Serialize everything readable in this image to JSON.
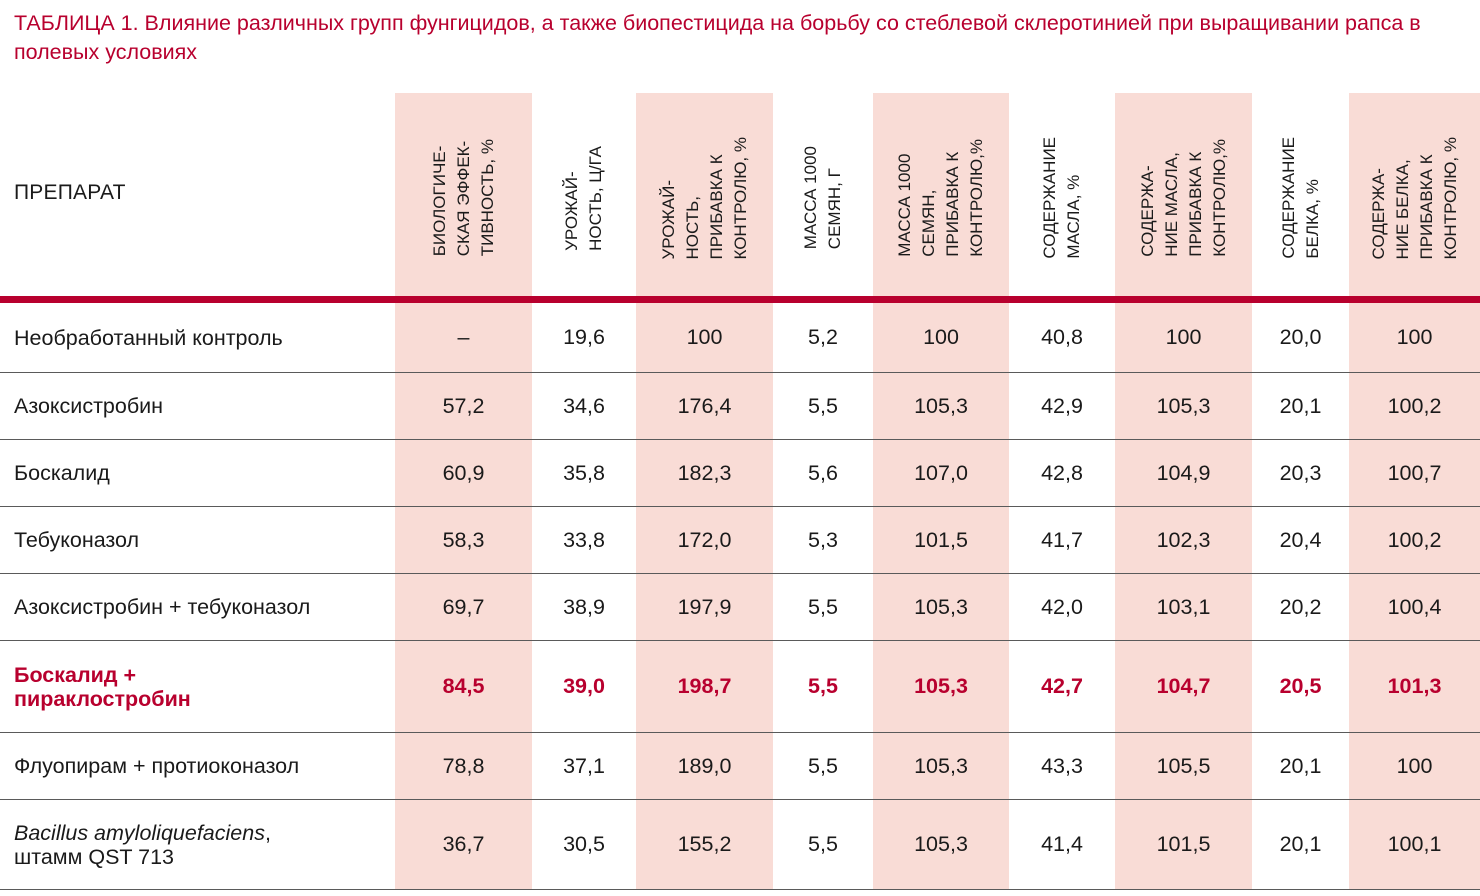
{
  "title": "ТАБЛИЦА 1. Влияние различных групп фунгицидов, а также биопестицида на борьбу со стеблевой склеротинией при выращивании рапса в полевых условиях",
  "table": {
    "first_header": "ПРЕПАРАТ",
    "columns": [
      "БИОЛОГИЧЕ-\nСКАЯ ЭФФЕК-\nТИВНОСТЬ, %",
      "УРОЖАЙ-\nНОСТЬ, Ц/ГА",
      "УРОЖАЙ-\nНОСТЬ,\nПРИБАВКА К\nКОНТРОЛЮ, %",
      "МАССА 1000\nСЕМЯН, Г",
      "МАССА 1000\nСЕМЯН,\nПРИБАВКА К\nКОНТРОЛЮ,%",
      "СОДЕРЖАНИЕ\nМАСЛА, %",
      "СОДЕРЖА-\nНИЕ МАСЛА,\nПРИБАВКА К\nКОНТРОЛЮ,%",
      "СОДЕРЖАНИЕ\nБЕЛКА, %",
      "СОДЕРЖА-\nНИЕ БЕЛКА,\nПРИБАВКА К\nКОНТРОЛЮ, %"
    ],
    "rows": [
      {
        "name": "Необработанный контроль",
        "values": [
          "–",
          "19,6",
          "100",
          "5,2",
          "100",
          "40,8",
          "100",
          "20,0",
          "100"
        ]
      },
      {
        "name": "Азоксистробин",
        "values": [
          "57,2",
          "34,6",
          "176,4",
          "5,5",
          "105,3",
          "42,9",
          "105,3",
          "20,1",
          "100,2"
        ]
      },
      {
        "name": "Боскалид",
        "values": [
          "60,9",
          "35,8",
          "182,3",
          "5,6",
          "107,0",
          "42,8",
          "104,9",
          "20,3",
          "100,7"
        ]
      },
      {
        "name": "Тебуконазол",
        "values": [
          "58,3",
          "33,8",
          "172,0",
          "5,3",
          "101,5",
          "41,7",
          "102,3",
          "20,4",
          "100,2"
        ]
      },
      {
        "name": "Азоксистробин + тебуконазол",
        "values": [
          "69,7",
          "38,9",
          "197,9",
          "5,5",
          "105,3",
          "42,0",
          "103,1",
          "20,2",
          "100,4"
        ]
      },
      {
        "name": "Боскалид +\nпираклостробин",
        "values": [
          "84,5",
          "39,0",
          "198,7",
          "5,5",
          "105,3",
          "42,7",
          "104,7",
          "20,5",
          "101,3"
        ]
      },
      {
        "name": "Флуопирам + протиоконазол",
        "values": [
          "78,8",
          "37,1",
          "189,0",
          "5,5",
          "105,3",
          "43,3",
          "105,5",
          "20,1",
          "100"
        ]
      },
      {
        "name_italic": "Bacillus amyloliquefaciens",
        "name_rest": ",\nштамм QST 713",
        "values": [
          "36,7",
          "30,5",
          "155,2",
          "5,5",
          "105,3",
          "41,4",
          "101,5",
          "20,1",
          "100,1"
        ]
      }
    ]
  }
}
